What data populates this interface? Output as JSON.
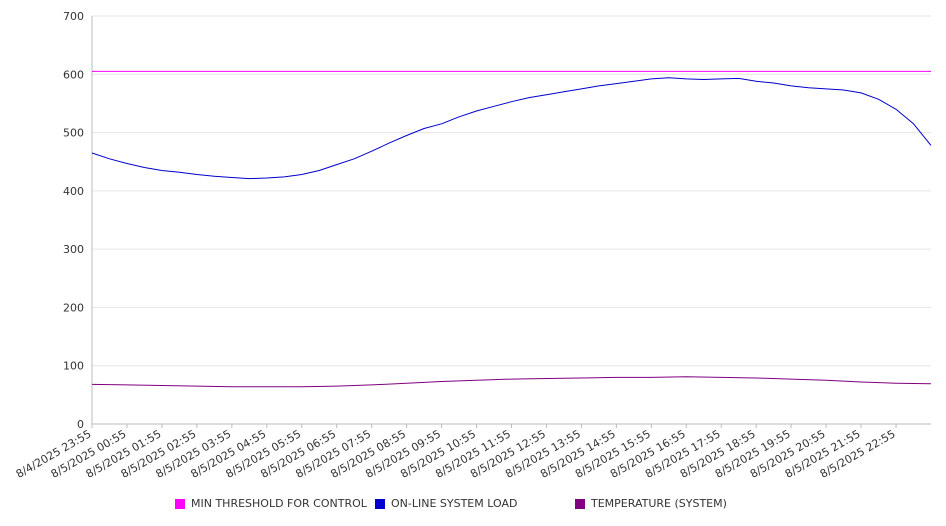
{
  "chart_data": {
    "type": "line",
    "title": "",
    "xlabel": "",
    "ylabel": "",
    "ylim": [
      0,
      700
    ],
    "y_ticks": [
      0,
      100,
      200,
      300,
      400,
      500,
      600,
      700
    ],
    "grid": true,
    "legend_position": "bottom",
    "x_tick_labels": [
      "8/4/2025 23:55",
      "8/5/2025 00:55",
      "8/5/2025 01:55",
      "8/5/2025 02:55",
      "8/5/2025 03:55",
      "8/5/2025 04:55",
      "8/5/2025 05:55",
      "8/5/2025 06:55",
      "8/5/2025 07:55",
      "8/5/2025 08:55",
      "8/5/2025 09:55",
      "8/5/2025 10:55",
      "8/5/2025 11:55",
      "8/5/2025 12:55",
      "8/5/2025 13:55",
      "8/5/2025 14:55",
      "8/5/2025 15:55",
      "8/5/2025 16:55",
      "8/5/2025 17:55",
      "8/5/2025 18:55",
      "8/5/2025 19:55",
      "8/5/2025 20:55",
      "8/5/2025 21:55",
      "8/5/2025 22:55"
    ],
    "x_start": "8/4/2025 23:55",
    "x_end": "8/5/2025 23:55",
    "series": [
      {
        "name": "MIN THRESHOLD FOR CONTROL",
        "color": "#ff00ff",
        "x": [
          "8/4/2025 23:55",
          "8/5/2025 23:55"
        ],
        "values": [
          605,
          605
        ]
      },
      {
        "name": "ON-LINE SYSTEM LOAD",
        "color": "#0000cc",
        "x": [
          "8/4/2025 23:55",
          "8/5/2025 00:25",
          "8/5/2025 00:55",
          "8/5/2025 01:25",
          "8/5/2025 01:55",
          "8/5/2025 02:25",
          "8/5/2025 02:55",
          "8/5/2025 03:25",
          "8/5/2025 03:55",
          "8/5/2025 04:25",
          "8/5/2025 04:55",
          "8/5/2025 05:25",
          "8/5/2025 05:55",
          "8/5/2025 06:25",
          "8/5/2025 06:55",
          "8/5/2025 07:25",
          "8/5/2025 07:55",
          "8/5/2025 08:25",
          "8/5/2025 08:55",
          "8/5/2025 09:25",
          "8/5/2025 09:55",
          "8/5/2025 10:25",
          "8/5/2025 10:55",
          "8/5/2025 11:25",
          "8/5/2025 11:55",
          "8/5/2025 12:25",
          "8/5/2025 12:55",
          "8/5/2025 13:25",
          "8/5/2025 13:55",
          "8/5/2025 14:25",
          "8/5/2025 14:55",
          "8/5/2025 15:25",
          "8/5/2025 15:55",
          "8/5/2025 16:25",
          "8/5/2025 16:55",
          "8/5/2025 17:25",
          "8/5/2025 17:55",
          "8/5/2025 18:25",
          "8/5/2025 18:55",
          "8/5/2025 19:25",
          "8/5/2025 19:55",
          "8/5/2025 20:25",
          "8/5/2025 20:55",
          "8/5/2025 21:25",
          "8/5/2025 21:55",
          "8/5/2025 22:25",
          "8/5/2025 22:55",
          "8/5/2025 23:25",
          "8/5/2025 23:55"
        ],
        "values": [
          465,
          455,
          447,
          440,
          435,
          432,
          428,
          425,
          423,
          421,
          422,
          424,
          428,
          435,
          445,
          455,
          468,
          482,
          495,
          507,
          515,
          527,
          537,
          545,
          553,
          560,
          565,
          570,
          575,
          580,
          584,
          588,
          592,
          594,
          592,
          591,
          592,
          593,
          588,
          585,
          580,
          577,
          575,
          573,
          568,
          557,
          540,
          515,
          478
        ]
      },
      {
        "name": "TEMPERATURE (SYSTEM)",
        "color": "#800080",
        "x": [
          "8/4/2025 23:55",
          "8/5/2025 00:55",
          "8/5/2025 01:55",
          "8/5/2025 02:55",
          "8/5/2025 03:55",
          "8/5/2025 04:55",
          "8/5/2025 05:55",
          "8/5/2025 06:55",
          "8/5/2025 07:55",
          "8/5/2025 08:55",
          "8/5/2025 09:55",
          "8/5/2025 10:55",
          "8/5/2025 11:55",
          "8/5/2025 12:55",
          "8/5/2025 13:55",
          "8/5/2025 14:55",
          "8/5/2025 15:55",
          "8/5/2025 16:55",
          "8/5/2025 17:55",
          "8/5/2025 18:55",
          "8/5/2025 19:55",
          "8/5/2025 20:55",
          "8/5/2025 21:55",
          "8/5/2025 22:55",
          "8/5/2025 23:55"
        ],
        "values": [
          68,
          67,
          66,
          65,
          64,
          64,
          64,
          65,
          67,
          70,
          73,
          75,
          77,
          78,
          79,
          80,
          80,
          81,
          80,
          79,
          77,
          75,
          72,
          70,
          69
        ]
      }
    ]
  }
}
